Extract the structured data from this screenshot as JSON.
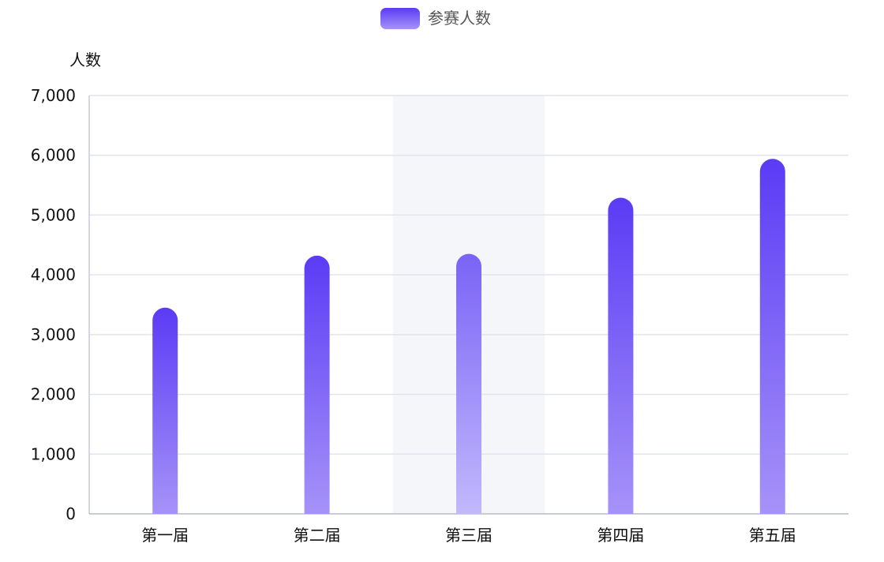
{
  "chart_data": {
    "type": "bar",
    "legend": {
      "label": "参赛人数",
      "position": "top-center"
    },
    "ylabel": "人数",
    "categories": [
      "第一届",
      "第二届",
      "第三届",
      "第四届",
      "第五届"
    ],
    "series": [
      {
        "name": "参赛人数",
        "values": [
          3450,
          4320,
          4350,
          5290,
          5940
        ]
      }
    ],
    "ylim": [
      0,
      7000
    ],
    "yticks": [
      0,
      1000,
      2000,
      3000,
      4000,
      5000,
      6000,
      7000
    ],
    "ytick_labels": [
      "0",
      "1,000",
      "2,000",
      "3,000",
      "4,000",
      "5,000",
      "6,000",
      "7,000"
    ],
    "highlighted_category": "第三届",
    "grid": true,
    "colors": {
      "bar_top": "#5b3bf5",
      "bar_bottom": "#b4a8fb",
      "highlight_bg": "#f4f6fa",
      "grid": "#e1e4ee"
    }
  }
}
